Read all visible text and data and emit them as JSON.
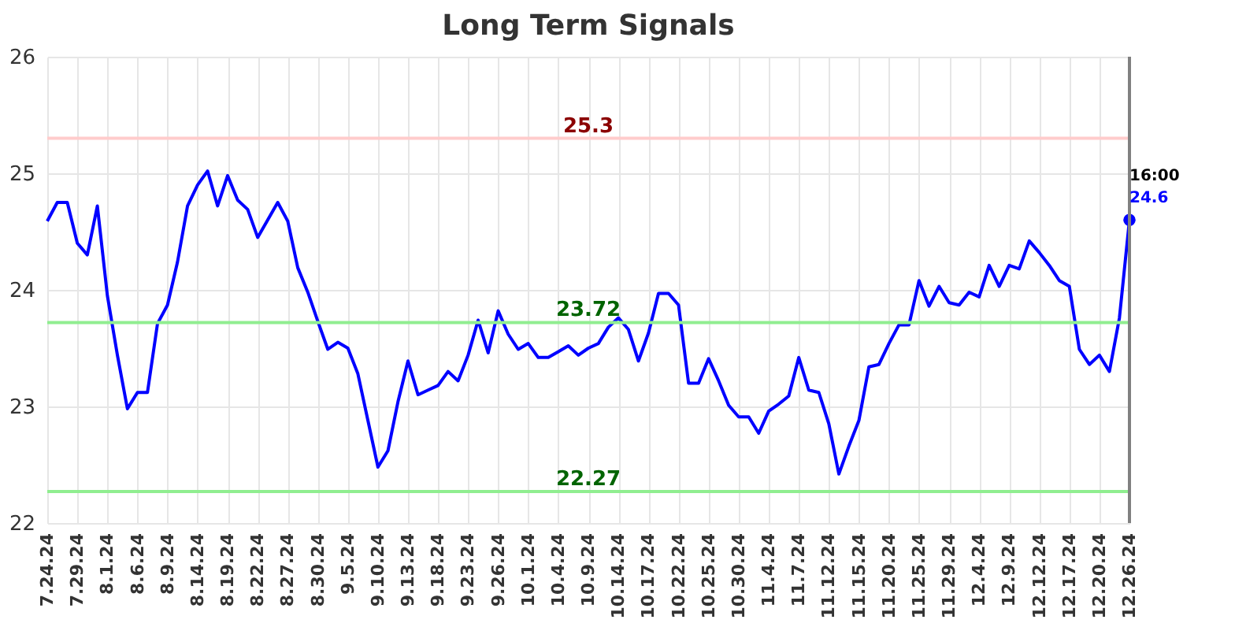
{
  "chart_data": {
    "type": "line",
    "title": "Long Term Signals",
    "categories": [
      "7.24.24",
      null,
      null,
      "7.29.24",
      null,
      null,
      "8.1.24",
      null,
      null,
      "8.6.24",
      null,
      null,
      "8.9.24",
      null,
      null,
      "8.14.24",
      null,
      null,
      "8.19.24",
      null,
      null,
      "8.22.24",
      null,
      null,
      "8.27.24",
      null,
      null,
      "8.30.24",
      null,
      null,
      "9.5.24",
      null,
      null,
      "9.10.24",
      null,
      null,
      "9.13.24",
      null,
      null,
      "9.18.24",
      null,
      null,
      "9.23.24",
      null,
      null,
      "9.26.24",
      null,
      null,
      "10.1.24",
      null,
      null,
      "10.4.24",
      null,
      null,
      "10.9.24",
      null,
      null,
      "10.14.24",
      null,
      null,
      "10.17.24",
      null,
      null,
      "10.22.24",
      null,
      null,
      "10.25.24",
      null,
      null,
      "10.30.24",
      null,
      null,
      "11.4.24",
      null,
      null,
      "11.7.24",
      null,
      null,
      "11.12.24",
      null,
      null,
      "11.15.24",
      null,
      null,
      "11.20.24",
      null,
      null,
      "11.25.24",
      null,
      null,
      "11.29.24",
      null,
      null,
      "12.4.24",
      null,
      null,
      "12.9.24",
      null,
      null,
      "12.12.24",
      null,
      null,
      "12.17.24",
      null,
      null,
      "12.20.24",
      null,
      null,
      "12.26.24"
    ],
    "series": [
      {
        "color": "#0000ff",
        "values": [
          24.59,
          24.75,
          24.75,
          24.4,
          24.3,
          24.72,
          23.95,
          23.44,
          22.98,
          23.12,
          23.12,
          23.71,
          23.87,
          24.24,
          24.72,
          24.9,
          25.02,
          24.72,
          24.98,
          24.77,
          24.69,
          24.45,
          24.6,
          24.75,
          24.59,
          24.19,
          23.98,
          23.73,
          23.49,
          23.55,
          23.5,
          23.28,
          22.88,
          22.48,
          22.62,
          23.04,
          23.39,
          23.1,
          23.14,
          23.18,
          23.3,
          23.22,
          23.44,
          23.74,
          23.46,
          23.82,
          23.62,
          23.49,
          23.54,
          23.42,
          23.42,
          23.47,
          23.52,
          23.44,
          23.5,
          23.54,
          23.68,
          23.76,
          23.66,
          23.39,
          23.63,
          23.97,
          23.97,
          23.87,
          23.2,
          23.2,
          23.41,
          23.22,
          23.01,
          22.91,
          22.91,
          22.77,
          22.96,
          23.02,
          23.09,
          23.42,
          23.14,
          23.12,
          22.85,
          22.42,
          22.66,
          22.88,
          23.34,
          23.36,
          23.54,
          23.7,
          23.7,
          24.08,
          23.86,
          24.03,
          23.89,
          23.87,
          23.98,
          23.94,
          24.21,
          24.03,
          24.21,
          24.18,
          24.42,
          24.32,
          24.21,
          24.08,
          24.03,
          23.49,
          23.36,
          23.44,
          23.3,
          23.76,
          24.6
        ]
      },
      {
        "type": "scatter",
        "color": "#0000ff",
        "marker": "circle",
        "x": [
          "12.26.24"
        ],
        "values": [
          24.6
        ]
      }
    ],
    "ylim": [
      22,
      26
    ],
    "yticks": [
      22,
      23,
      24,
      25,
      26
    ],
    "grid": true,
    "ref_lines": [
      {
        "axis": "y",
        "value": 25.3,
        "label": "25.3",
        "color": "#ffcccc"
      },
      {
        "axis": "y",
        "value": 23.72,
        "label": "23.72",
        "color": "#90ee90"
      },
      {
        "axis": "y",
        "value": 22.27,
        "label": "22.27",
        "color": "#90ee90"
      },
      {
        "axis": "x",
        "value": "12.26.24",
        "color": "#808080"
      }
    ],
    "annotations": [
      {
        "text": "16:00",
        "x": "12.26.24",
        "y": 24.6
      },
      {
        "text": "24.6",
        "x": "12.26.24",
        "y": 24.6
      }
    ]
  }
}
